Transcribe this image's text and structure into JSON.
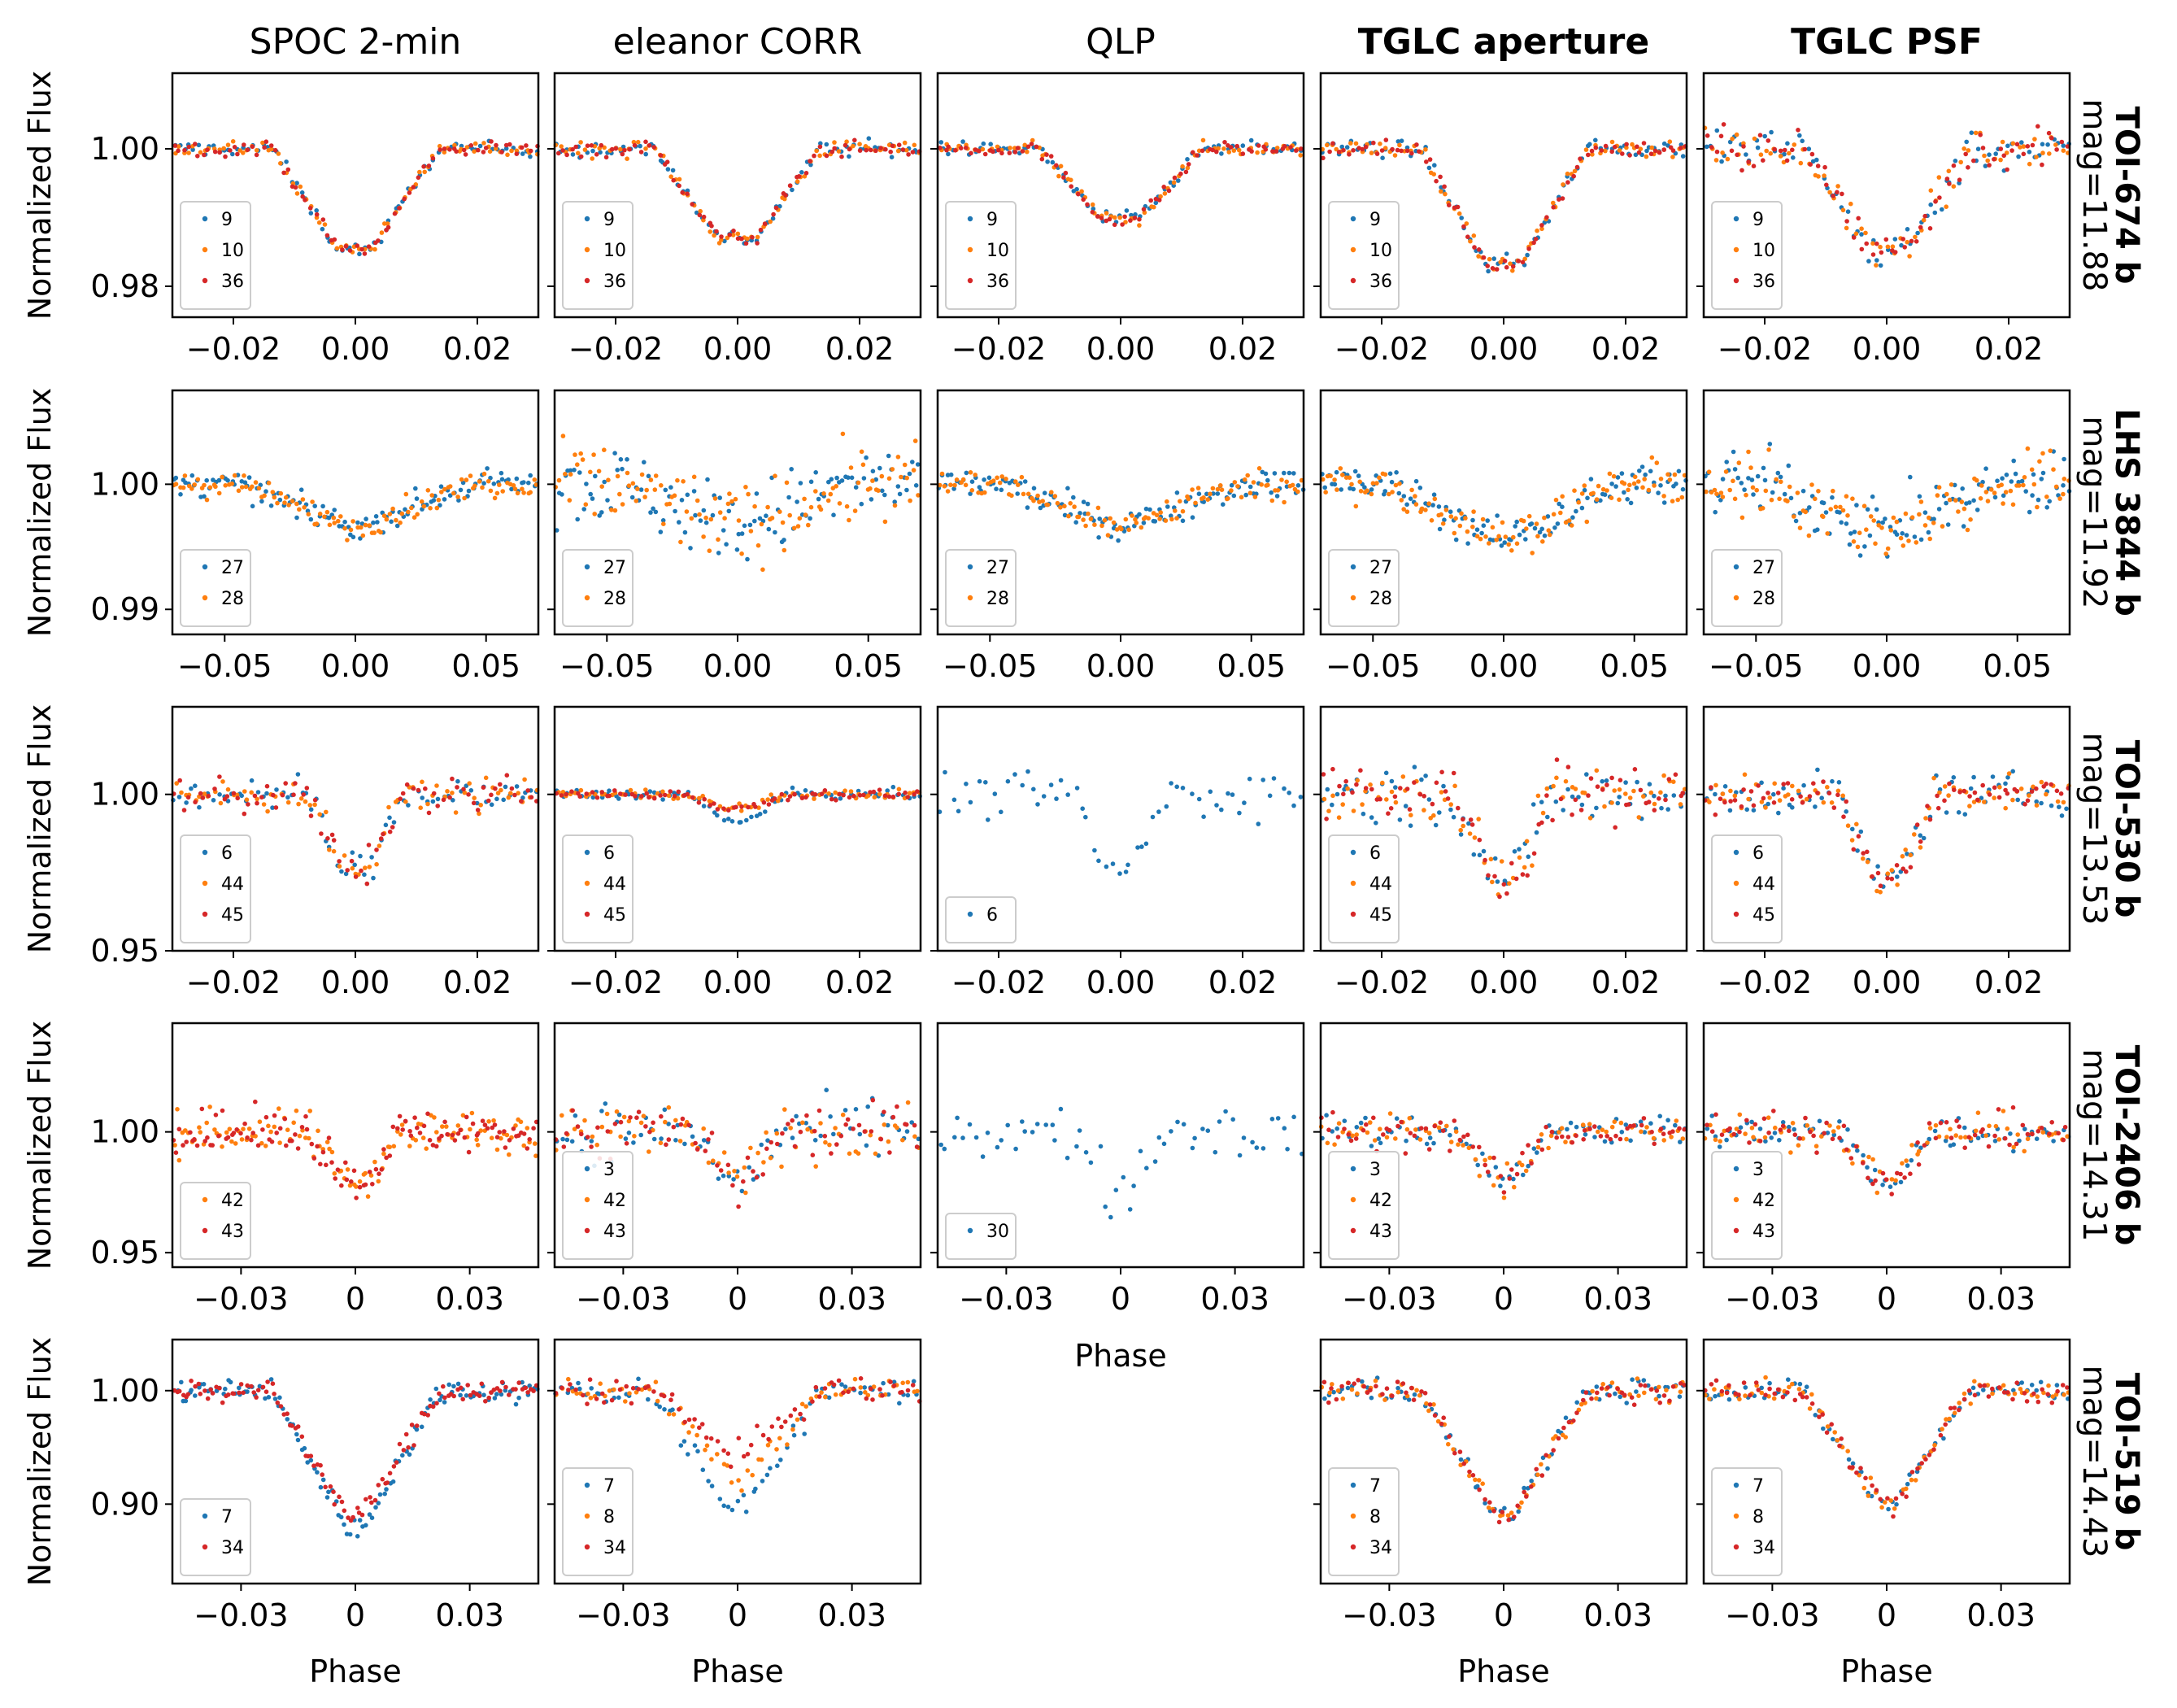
{
  "colors": {
    "blue": "#1f77b4",
    "orange": "#ff7f0e",
    "red": "#d62728"
  },
  "columns": [
    {
      "title": "SPOC 2-min",
      "bold": false
    },
    {
      "title": "eleanor CORR",
      "bold": false
    },
    {
      "title": "QLP",
      "bold": false
    },
    {
      "title": "TGLC aperture",
      "bold": true
    },
    {
      "title": "TGLC PSF",
      "bold": true
    }
  ],
  "ylabel": "Normalized Flux",
  "xlabel": "Phase",
  "rows": [
    {
      "name": "TOI-674 b",
      "mag": "mag=11.88"
    },
    {
      "name": "LHS 3844 b",
      "mag": "mag=11.92"
    },
    {
      "name": "TOI-530 b",
      "mag": "mag=13.53"
    },
    {
      "name": "TOI-2406 b",
      "mag": "mag=14.31"
    },
    {
      "name": "TOI-519 b",
      "mag": "mag=14.43"
    }
  ],
  "chart_data": [
    {
      "type": "scatter",
      "row": "TOI-674 b",
      "xlim": [
        -0.03,
        0.03
      ],
      "ylim": [
        0.9755,
        1.011
      ],
      "xticks": [
        -0.02,
        0.0,
        0.02
      ],
      "xtick_labels": [
        "−0.02",
        "0.00",
        "0.02"
      ],
      "yticks": [
        0.98,
        1.0
      ],
      "ytick_labels": [
        "0.98",
        "1.00"
      ],
      "transit": {
        "depth": 0.0145,
        "half_width": 0.0135,
        "flat": 0.003
      },
      "panels": [
        {
          "column": "SPOC 2-min",
          "sectors": [
            "9",
            "10",
            "36"
          ],
          "series_colors": [
            "blue",
            "orange",
            "red"
          ],
          "noise": 0.0007,
          "depth_scale": [
            1.0,
            1.0,
            1.0
          ]
        },
        {
          "column": "eleanor CORR",
          "sectors": [
            "9",
            "10",
            "36"
          ],
          "series_colors": [
            "blue",
            "orange",
            "red"
          ],
          "noise": 0.0008,
          "depth_scale": [
            0.9,
            0.9,
            0.9
          ]
        },
        {
          "column": "QLP",
          "sectors": [
            "9",
            "10",
            "36"
          ],
          "series_colors": [
            "blue",
            "orange",
            "red"
          ],
          "noise": 0.0007,
          "depth_scale": [
            0.7,
            0.7,
            0.7
          ]
        },
        {
          "column": "TGLC aperture",
          "sectors": [
            "9",
            "10",
            "36"
          ],
          "series_colors": [
            "blue",
            "orange",
            "red"
          ],
          "noise": 0.0008,
          "depth_scale": [
            1.15,
            1.15,
            1.15
          ]
        },
        {
          "column": "TGLC PSF",
          "sectors": [
            "9",
            "10",
            "36"
          ],
          "series_colors": [
            "blue",
            "orange",
            "red"
          ],
          "noise": 0.0022,
          "depth_scale": [
            1.0,
            1.0,
            1.0
          ]
        }
      ]
    },
    {
      "type": "scatter",
      "row": "LHS 3844 b",
      "xlim": [
        -0.07,
        0.07
      ],
      "ylim": [
        0.988,
        1.0075
      ],
      "xticks": [
        -0.05,
        0.0,
        0.05
      ],
      "xtick_labels": [
        "−0.05",
        "0.00",
        "0.05"
      ],
      "yticks": [
        0.99,
        1.0
      ],
      "ytick_labels": [
        "0.99",
        "1.00"
      ],
      "transit": {
        "depth": 0.0035,
        "half_width": 0.045,
        "flat": 0.0
      },
      "panels": [
        {
          "column": "SPOC 2-min",
          "sectors": [
            "27",
            "28"
          ],
          "series_colors": [
            "blue",
            "orange"
          ],
          "noise": 0.0007,
          "depth_scale": [
            1.0,
            1.0
          ]
        },
        {
          "column": "eleanor CORR",
          "sectors": [
            "27",
            "28"
          ],
          "series_colors": [
            "blue",
            "orange"
          ],
          "noise": 0.0022,
          "depth_scale": [
            1.0,
            1.0
          ]
        },
        {
          "column": "QLP",
          "sectors": [
            "27",
            "28"
          ],
          "series_colors": [
            "blue",
            "orange"
          ],
          "noise": 0.0008,
          "depth_scale": [
            1.0,
            1.0
          ]
        },
        {
          "column": "TGLC aperture",
          "sectors": [
            "27",
            "28"
          ],
          "series_colors": [
            "blue",
            "orange"
          ],
          "noise": 0.0011,
          "depth_scale": [
            1.3,
            1.3
          ]
        },
        {
          "column": "TGLC PSF",
          "sectors": [
            "27",
            "28"
          ],
          "series_colors": [
            "blue",
            "orange"
          ],
          "noise": 0.0018,
          "depth_scale": [
            1.1,
            1.1
          ]
        }
      ]
    },
    {
      "type": "scatter",
      "row": "TOI-530 b",
      "xlim": [
        -0.03,
        0.03
      ],
      "ylim": [
        0.95,
        1.028
      ],
      "xticks": [
        -0.02,
        0.0,
        0.02
      ],
      "xtick_labels": [
        "−0.02",
        "0.00",
        "0.02"
      ],
      "yticks": [
        0.95,
        1.0
      ],
      "ytick_labels": [
        "0.95",
        "1.00"
      ],
      "transit": {
        "depth": 0.024,
        "half_width": 0.008,
        "flat": 0.002
      },
      "panels": [
        {
          "column": "SPOC 2-min",
          "sectors": [
            "6",
            "44",
            "45"
          ],
          "series_colors": [
            "blue",
            "orange",
            "red"
          ],
          "noise": 0.004,
          "depth_scale": [
            1.0,
            1.0,
            1.0
          ]
        },
        {
          "column": "eleanor CORR",
          "sectors": [
            "6",
            "44",
            "45"
          ],
          "series_colors": [
            "blue",
            "orange",
            "red"
          ],
          "noise": 0.0011,
          "depth_scale": [
            0.35,
            0.18,
            0.18
          ]
        },
        {
          "column": "QLP",
          "sectors": [
            "6"
          ],
          "series_colors": [
            "blue"
          ],
          "noise": 0.005,
          "depth_scale": [
            1.0
          ]
        },
        {
          "column": "TGLC aperture",
          "sectors": [
            "6",
            "44",
            "45"
          ],
          "series_colors": [
            "blue",
            "orange",
            "red"
          ],
          "noise": 0.0065,
          "depth_scale": [
            1.1,
            1.1,
            1.1
          ]
        },
        {
          "column": "TGLC PSF",
          "sectors": [
            "6",
            "44",
            "45"
          ],
          "series_colors": [
            "blue",
            "orange",
            "red"
          ],
          "noise": 0.0045,
          "depth_scale": [
            1.1,
            1.1,
            1.1
          ]
        }
      ]
    },
    {
      "type": "scatter",
      "row": "TOI-2406 b",
      "xlim": [
        -0.048,
        0.048
      ],
      "ylim": [
        0.944,
        1.045
      ],
      "xticks": [
        -0.03,
        0.0,
        0.03
      ],
      "xtick_labels": [
        "−0.03",
        "0",
        "0.03"
      ],
      "yticks": [
        0.95,
        1.0
      ],
      "ytick_labels": [
        "0.95",
        "1.00"
      ],
      "transit": {
        "depth": 0.02,
        "half_width": 0.012,
        "flat": 0.002
      },
      "panels": [
        {
          "column": "SPOC 2-min",
          "sectors": [
            "42",
            "43"
          ],
          "series_colors": [
            "orange",
            "red"
          ],
          "noise": 0.006,
          "depth_scale": [
            1.0,
            1.0
          ]
        },
        {
          "column": "eleanor CORR",
          "sectors": [
            "3",
            "42",
            "43"
          ],
          "series_colors": [
            "blue",
            "orange",
            "red"
          ],
          "noise": 0.008,
          "depth_scale": [
            1.0,
            1.0,
            1.0
          ]
        },
        {
          "column": "QLP",
          "sectors": [
            "30"
          ],
          "series_colors": [
            "blue"
          ],
          "noise": 0.008,
          "depth_scale": [
            1.3
          ]
        },
        {
          "column": "TGLC aperture",
          "sectors": [
            "3",
            "42",
            "43"
          ],
          "series_colors": [
            "blue",
            "orange",
            "red"
          ],
          "noise": 0.005,
          "depth_scale": [
            1.0,
            1.0,
            1.0
          ]
        },
        {
          "column": "TGLC PSF",
          "sectors": [
            "3",
            "42",
            "43"
          ],
          "series_colors": [
            "blue",
            "orange",
            "red"
          ],
          "noise": 0.005,
          "depth_scale": [
            1.0,
            1.0,
            1.0
          ]
        }
      ]
    },
    {
      "type": "scatter",
      "row": "TOI-519 b",
      "xlim": [
        -0.048,
        0.048
      ],
      "ylim": [
        0.83,
        1.045
      ],
      "xticks": [
        -0.03,
        0.0,
        0.03
      ],
      "xtick_labels": [
        "−0.03",
        "0",
        "0.03"
      ],
      "yticks": [
        0.9,
        1.0
      ],
      "ytick_labels": [
        "0.90",
        "1.00"
      ],
      "transit": {
        "depth": 0.11,
        "half_width": 0.022,
        "flat": 0.002
      },
      "panels": [
        {
          "column": "SPOC 2-min",
          "sectors": [
            "7",
            "34"
          ],
          "series_colors": [
            "blue",
            "red"
          ],
          "noise": 0.007,
          "depth_scale": [
            1.1,
            1.0
          ]
        },
        {
          "column": "eleanor CORR",
          "sectors": [
            "7",
            "8",
            "34"
          ],
          "series_colors": [
            "blue",
            "orange",
            "red"
          ],
          "noise": 0.008,
          "depth_scale": [
            0.95,
            0.7,
            0.5
          ]
        },
        null,
        {
          "column": "TGLC aperture",
          "sectors": [
            "7",
            "8",
            "34"
          ],
          "series_colors": [
            "blue",
            "orange",
            "red"
          ],
          "noise": 0.007,
          "depth_scale": [
            1.0,
            1.0,
            1.0
          ]
        },
        {
          "column": "TGLC PSF",
          "sectors": [
            "7",
            "8",
            "34"
          ],
          "series_colors": [
            "blue",
            "orange",
            "red"
          ],
          "noise": 0.007,
          "depth_scale": [
            0.9,
            0.9,
            0.9
          ]
        }
      ]
    }
  ]
}
